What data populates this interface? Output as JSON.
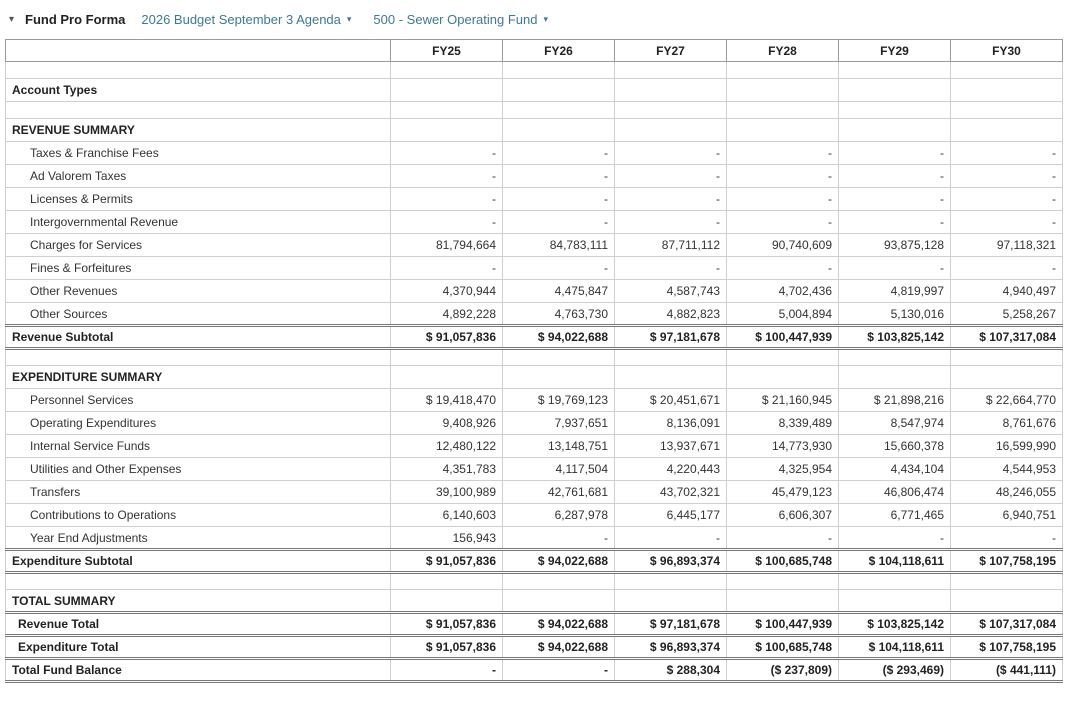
{
  "colors": {
    "dropdown_link": "#3b7a96"
  },
  "header": {
    "collapse_icon": "▾",
    "title": "Fund Pro Forma",
    "dropdowns": [
      {
        "label": "2026 Budget September 3 Agenda",
        "arrow": "▾"
      },
      {
        "label": "500 - Sewer Operating Fund",
        "arrow": "▾"
      }
    ]
  },
  "table": {
    "columns": [
      "FY25",
      "FY26",
      "FY27",
      "FY28",
      "FY29",
      "FY30"
    ],
    "rows": [
      {
        "type": "blank",
        "label": ""
      },
      {
        "type": "section",
        "label": "Account Types"
      },
      {
        "type": "blank",
        "label": ""
      },
      {
        "type": "section",
        "label": "REVENUE SUMMARY"
      },
      {
        "type": "detail",
        "label": "Taxes & Franchise Fees",
        "values": [
          "-",
          "-",
          "-",
          "-",
          "-",
          "-"
        ]
      },
      {
        "type": "detail",
        "label": "Ad Valorem Taxes",
        "values": [
          "-",
          "-",
          "-",
          "-",
          "-",
          "-"
        ]
      },
      {
        "type": "detail",
        "label": "Licenses & Permits",
        "values": [
          "-",
          "-",
          "-",
          "-",
          "-",
          "-"
        ]
      },
      {
        "type": "detail",
        "label": "Intergovernmental Revenue",
        "values": [
          "-",
          "-",
          "-",
          "-",
          "-",
          "-"
        ]
      },
      {
        "type": "detail",
        "label": "Charges for Services",
        "values": [
          "81,794,664",
          "84,783,111",
          "87,711,112",
          "90,740,609",
          "93,875,128",
          "97,118,321"
        ]
      },
      {
        "type": "detail",
        "label": "Fines & Forfeitures",
        "values": [
          "-",
          "-",
          "-",
          "-",
          "-",
          "-"
        ]
      },
      {
        "type": "detail",
        "label": "Other Revenues",
        "values": [
          "4,370,944",
          "4,475,847",
          "4,587,743",
          "4,702,436",
          "4,819,997",
          "4,940,497"
        ]
      },
      {
        "type": "detail",
        "label": "Other Sources",
        "values": [
          "4,892,228",
          "4,763,730",
          "4,882,823",
          "5,004,894",
          "5,130,016",
          "5,258,267"
        ]
      },
      {
        "type": "subtotal",
        "label": "Revenue Subtotal",
        "values": [
          "$ 91,057,836",
          "$ 94,022,688",
          "$ 97,181,678",
          "$ 100,447,939",
          "$ 103,825,142",
          "$ 107,317,084"
        ]
      },
      {
        "type": "blank",
        "label": ""
      },
      {
        "type": "section",
        "label": "EXPENDITURE SUMMARY"
      },
      {
        "type": "detail",
        "label": "Personnel Services",
        "values": [
          "$ 19,418,470",
          "$ 19,769,123",
          "$ 20,451,671",
          "$ 21,160,945",
          "$ 21,898,216",
          "$ 22,664,770"
        ]
      },
      {
        "type": "detail",
        "label": "Operating Expenditures",
        "values": [
          "9,408,926",
          "7,937,651",
          "8,136,091",
          "8,339,489",
          "8,547,974",
          "8,761,676"
        ]
      },
      {
        "type": "detail",
        "label": "Internal Service Funds",
        "values": [
          "12,480,122",
          "13,148,751",
          "13,937,671",
          "14,773,930",
          "15,660,378",
          "16,599,990"
        ]
      },
      {
        "type": "detail",
        "label": "Utilities and Other Expenses",
        "values": [
          "4,351,783",
          "4,117,504",
          "4,220,443",
          "4,325,954",
          "4,434,104",
          "4,544,953"
        ]
      },
      {
        "type": "detail",
        "label": "Transfers",
        "values": [
          "39,100,989",
          "42,761,681",
          "43,702,321",
          "45,479,123",
          "46,806,474",
          "48,246,055"
        ]
      },
      {
        "type": "detail",
        "label": "Contributions to Operations",
        "values": [
          "6,140,603",
          "6,287,978",
          "6,445,177",
          "6,606,307",
          "6,771,465",
          "6,940,751"
        ]
      },
      {
        "type": "detail",
        "label": "Year End Adjustments",
        "values": [
          "156,943",
          "-",
          "-",
          "-",
          "-",
          "-"
        ]
      },
      {
        "type": "subtotal",
        "label": "Expenditure Subtotal",
        "values": [
          "$ 91,057,836",
          "$ 94,022,688",
          "$ 96,893,374",
          "$ 100,685,748",
          "$ 104,118,611",
          "$ 107,758,195"
        ]
      },
      {
        "type": "blank",
        "label": ""
      },
      {
        "type": "section",
        "label": "TOTAL SUMMARY"
      },
      {
        "type": "total",
        "label": "Revenue Total",
        "values": [
          "$ 91,057,836",
          "$ 94,022,688",
          "$ 97,181,678",
          "$ 100,447,939",
          "$ 103,825,142",
          "$ 107,317,084"
        ]
      },
      {
        "type": "total",
        "label": "Expenditure Total",
        "values": [
          "$ 91,057,836",
          "$ 94,022,688",
          "$ 96,893,374",
          "$ 100,685,748",
          "$ 104,118,611",
          "$ 107,758,195"
        ]
      },
      {
        "type": "grand",
        "label": "Total Fund Balance",
        "values": [
          "-",
          "-",
          "$ 288,304",
          "($ 237,809)",
          "($ 293,469)",
          "($ 441,111)"
        ]
      }
    ]
  }
}
